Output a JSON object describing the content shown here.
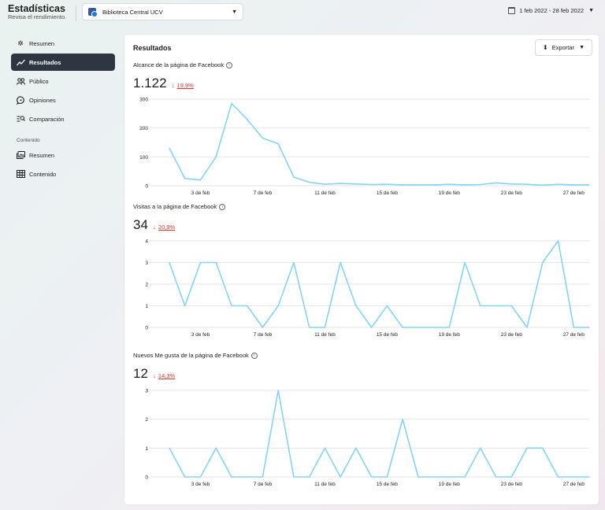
{
  "header": {
    "title": "Estadísticas",
    "subtitle": "Revisa el rendimiento.",
    "page_selector": "Biblioteca Central UCV",
    "date_range": "1 feb 2022 - 28 feb 2022"
  },
  "sidebar": {
    "items": [
      {
        "label": "Resumen",
        "icon": "sparkle-icon"
      },
      {
        "label": "Resultados",
        "icon": "trend-icon"
      },
      {
        "label": "Público",
        "icon": "people-icon"
      },
      {
        "label": "Opiniones",
        "icon": "chat-icon"
      },
      {
        "label": "Comparación",
        "icon": "compare-icon"
      }
    ],
    "section_label": "Contenido",
    "content_items": [
      {
        "label": "Resumen",
        "icon": "photos-icon"
      },
      {
        "label": "Contenido",
        "icon": "table-icon"
      }
    ],
    "active": "Resultados"
  },
  "main": {
    "title": "Resultados",
    "export_label": "Exportar"
  },
  "metrics": [
    {
      "title": "Alcance de la página de Facebook",
      "value": "1.122",
      "delta": "19,9%"
    },
    {
      "title": "Visitas a la página de Facebook",
      "value": "34",
      "delta": "20,9%"
    },
    {
      "title": "Nuevos Me gusta de la página de Facebook",
      "value": "12",
      "delta": "14,3%"
    }
  ],
  "chart_data": [
    {
      "type": "line",
      "x": [
        "1 feb",
        "2 feb",
        "3 feb",
        "4 feb",
        "5 feb",
        "6 feb",
        "7 feb",
        "8 feb",
        "9 feb",
        "10 feb",
        "11 feb",
        "12 feb",
        "13 feb",
        "14 feb",
        "15 feb",
        "16 feb",
        "17 feb",
        "18 feb",
        "19 feb",
        "20 feb",
        "21 feb",
        "22 feb",
        "23 feb",
        "24 feb",
        "25 feb",
        "26 feb",
        "27 feb",
        "28 feb"
      ],
      "xticks": [
        "3 de feb",
        "7 de feb",
        "11 de feb",
        "15 de feb",
        "19 de feb",
        "23 de feb",
        "27 de feb"
      ],
      "yticks": [
        0,
        100,
        200,
        300
      ],
      "ylim": [
        0,
        300
      ],
      "series": [
        {
          "values": [
            130,
            25,
            20,
            100,
            285,
            230,
            165,
            145,
            30,
            12,
            5,
            8,
            6,
            4,
            5,
            3,
            3,
            3,
            5,
            3,
            4,
            10,
            6,
            5,
            2,
            5,
            3,
            3
          ]
        }
      ],
      "color": "#86d4f5"
    },
    {
      "type": "line",
      "x": [
        "1 feb",
        "2 feb",
        "3 feb",
        "4 feb",
        "5 feb",
        "6 feb",
        "7 feb",
        "8 feb",
        "9 feb",
        "10 feb",
        "11 feb",
        "12 feb",
        "13 feb",
        "14 feb",
        "15 feb",
        "16 feb",
        "17 feb",
        "18 feb",
        "19 feb",
        "20 feb",
        "21 feb",
        "22 feb",
        "23 feb",
        "24 feb",
        "25 feb",
        "26 feb",
        "27 feb",
        "28 feb"
      ],
      "xticks": [
        "3 de feb",
        "7 de feb",
        "11 de feb",
        "15 de feb",
        "19 de feb",
        "23 de feb",
        "27 de feb"
      ],
      "yticks": [
        0,
        1,
        2,
        3,
        4
      ],
      "ylim": [
        0,
        4
      ],
      "series": [
        {
          "values": [
            3,
            1,
            3,
            3,
            1,
            1,
            0,
            1,
            3,
            0,
            0,
            3,
            1,
            0,
            1,
            0,
            0,
            0,
            0,
            3,
            1,
            1,
            1,
            0,
            3,
            4,
            0,
            0
          ]
        }
      ],
      "color": "#86d4f5"
    },
    {
      "type": "line",
      "x": [
        "1 feb",
        "2 feb",
        "3 feb",
        "4 feb",
        "5 feb",
        "6 feb",
        "7 feb",
        "8 feb",
        "9 feb",
        "10 feb",
        "11 feb",
        "12 feb",
        "13 feb",
        "14 feb",
        "15 feb",
        "16 feb",
        "17 feb",
        "18 feb",
        "19 feb",
        "20 feb",
        "21 feb",
        "22 feb",
        "23 feb",
        "24 feb",
        "25 feb",
        "26 feb",
        "27 feb",
        "28 feb"
      ],
      "xticks": [
        "3 de feb",
        "7 de feb",
        "11 de feb",
        "15 de feb",
        "19 de feb",
        "23 de feb",
        "27 de feb"
      ],
      "yticks": [
        0,
        1,
        2,
        3
      ],
      "ylim": [
        0,
        3
      ],
      "series": [
        {
          "values": [
            1,
            0,
            0,
            1,
            0,
            0,
            0,
            3,
            0,
            0,
            1,
            0,
            1,
            0,
            0,
            2,
            0,
            0,
            0,
            0,
            1,
            0,
            0,
            1,
            1,
            0,
            0,
            0
          ]
        }
      ],
      "color": "#86d4f5"
    }
  ]
}
